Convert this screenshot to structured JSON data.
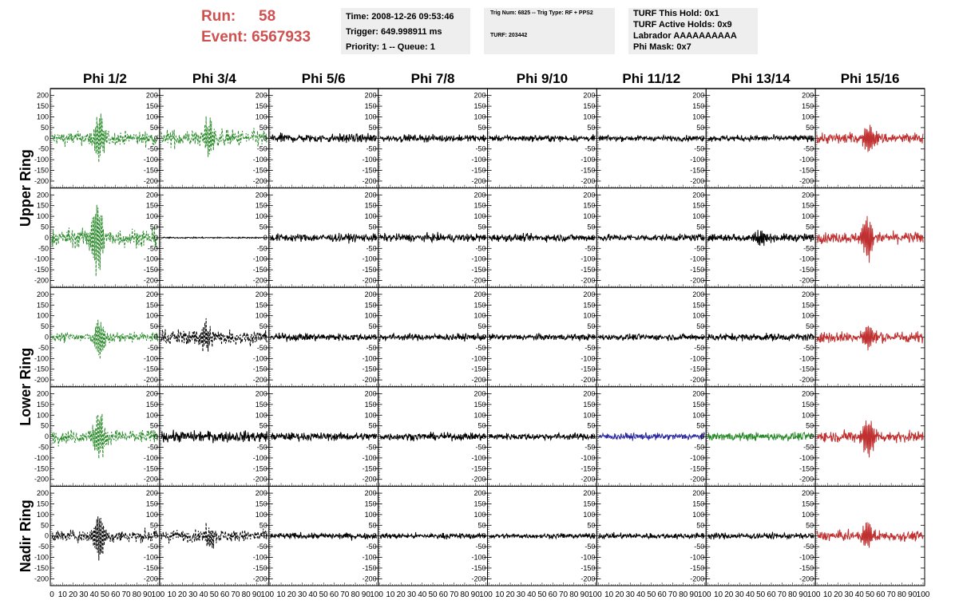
{
  "header": {
    "run_label": "Run:",
    "run_value": "58",
    "event_label": "Event:",
    "event_value": "6567933",
    "time_lines": [
      "Time: 2008-12-26 09:53:46",
      "Trigger: 649.998911 ms",
      "Priority: 1 -- Queue: 1"
    ],
    "trig_lines": [
      "Trig Num: 6825 -- Trig Type: RF + PPS2",
      "TURF: 203442"
    ],
    "turf_lines": [
      "TURF This Hold: 0x1",
      "TURF Active Holds: 0x9",
      "Labrador AAAAAAAAAA",
      "Phi Mask: 0x7"
    ]
  },
  "colors": {
    "black": "#000000",
    "green": "#2a8a2a",
    "red": "#c03030",
    "blue": "#2a2aa0",
    "header_text": "#d05050",
    "box_bg": "#eeeeee"
  },
  "chart_data": {
    "type": "line",
    "columns": [
      "Phi 1/2",
      "Phi 3/4",
      "Phi 5/6",
      "Phi 7/8",
      "Phi 9/10",
      "Phi 11/12",
      "Phi 13/14",
      "Phi 15/16"
    ],
    "rows": [
      "Upper Ring",
      "Upper Ring",
      "Lower Ring",
      "Lower Ring",
      "Nadir Ring"
    ],
    "row_labels": [
      "Upper Ring",
      "Lower Ring",
      "Nadir Ring"
    ],
    "ylim": [
      -210,
      210
    ],
    "yticks": [
      -200,
      -150,
      -100,
      -50,
      0,
      50,
      100,
      150,
      200
    ],
    "xlim": [
      0,
      100
    ],
    "xticks": [
      0,
      10,
      20,
      30,
      40,
      50,
      60,
      70,
      80,
      90,
      100
    ],
    "panels": [
      [
        {
          "color": "green",
          "dashed": true,
          "noise": 22,
          "pulse": 120,
          "center": 45
        },
        {
          "color": "green",
          "dashed": true,
          "noise": 28,
          "pulse": 95,
          "center": 45
        },
        {
          "color": "black",
          "dashed": false,
          "noise": 14,
          "pulse": 0,
          "center": 50
        },
        {
          "color": "black",
          "dashed": false,
          "noise": 11,
          "pulse": 0,
          "center": 50
        },
        {
          "color": "black",
          "dashed": false,
          "noise": 10,
          "pulse": 0,
          "center": 50
        },
        {
          "color": "black",
          "dashed": false,
          "noise": 9,
          "pulse": 0,
          "center": 50
        },
        {
          "color": "black",
          "dashed": false,
          "noise": 10,
          "pulse": 0,
          "center": 50
        },
        {
          "color": "red",
          "dashed": false,
          "noise": 18,
          "pulse": 80,
          "center": 50
        }
      ],
      [
        {
          "color": "green",
          "dashed": true,
          "noise": 30,
          "pulse": 195,
          "center": 42
        },
        {
          "color": "black",
          "dashed": false,
          "noise": 2,
          "pulse": 0,
          "center": 50
        },
        {
          "color": "black",
          "dashed": false,
          "noise": 13,
          "pulse": 0,
          "center": 50
        },
        {
          "color": "black",
          "dashed": false,
          "noise": 13,
          "pulse": 0,
          "center": 50
        },
        {
          "color": "black",
          "dashed": false,
          "noise": 12,
          "pulse": 0,
          "center": 50
        },
        {
          "color": "black",
          "dashed": false,
          "noise": 11,
          "pulse": 0,
          "center": 50
        },
        {
          "color": "black",
          "dashed": false,
          "noise": 13,
          "pulse": 40,
          "center": 50
        },
        {
          "color": "red",
          "dashed": false,
          "noise": 18,
          "pulse": 110,
          "center": 48
        }
      ],
      [
        {
          "color": "green",
          "dashed": true,
          "noise": 18,
          "pulse": 100,
          "center": 45
        },
        {
          "color": "black",
          "dashed": true,
          "noise": 25,
          "pulse": 80,
          "center": 42
        },
        {
          "color": "black",
          "dashed": false,
          "noise": 12,
          "pulse": 0,
          "center": 50
        },
        {
          "color": "black",
          "dashed": false,
          "noise": 11,
          "pulse": 0,
          "center": 50
        },
        {
          "color": "black",
          "dashed": false,
          "noise": 10,
          "pulse": 0,
          "center": 50
        },
        {
          "color": "black",
          "dashed": false,
          "noise": 10,
          "pulse": 0,
          "center": 50
        },
        {
          "color": "black",
          "dashed": false,
          "noise": 12,
          "pulse": 0,
          "center": 50
        },
        {
          "color": "red",
          "dashed": false,
          "noise": 18,
          "pulse": 70,
          "center": 48
        }
      ],
      [
        {
          "color": "green",
          "dashed": true,
          "noise": 22,
          "pulse": 140,
          "center": 45
        },
        {
          "color": "black",
          "dashed": false,
          "noise": 18,
          "pulse": 0,
          "center": 50
        },
        {
          "color": "black",
          "dashed": false,
          "noise": 13,
          "pulse": 0,
          "center": 50
        },
        {
          "color": "black",
          "dashed": false,
          "noise": 12,
          "pulse": 0,
          "center": 50
        },
        {
          "color": "black",
          "dashed": false,
          "noise": 11,
          "pulse": 0,
          "center": 50
        },
        {
          "color": "blue",
          "dashed": false,
          "noise": 11,
          "pulse": 0,
          "center": 50
        },
        {
          "color": "green",
          "dashed": false,
          "noise": 13,
          "pulse": 0,
          "center": 50
        },
        {
          "color": "red",
          "dashed": false,
          "noise": 18,
          "pulse": 110,
          "center": 48
        }
      ],
      [
        {
          "color": "black",
          "dashed": true,
          "noise": 20,
          "pulse": 120,
          "center": 45
        },
        {
          "color": "black",
          "dashed": true,
          "noise": 20,
          "pulse": 55,
          "center": 45
        },
        {
          "color": "black",
          "dashed": false,
          "noise": 10,
          "pulse": 0,
          "center": 50
        },
        {
          "color": "black",
          "dashed": false,
          "noise": 9,
          "pulse": 0,
          "center": 50
        },
        {
          "color": "black",
          "dashed": false,
          "noise": 8,
          "pulse": 0,
          "center": 50
        },
        {
          "color": "black",
          "dashed": false,
          "noise": 9,
          "pulse": 0,
          "center": 50
        },
        {
          "color": "black",
          "dashed": false,
          "noise": 10,
          "pulse": 0,
          "center": 50
        },
        {
          "color": "red",
          "dashed": false,
          "noise": 16,
          "pulse": 70,
          "center": 48
        }
      ]
    ]
  }
}
